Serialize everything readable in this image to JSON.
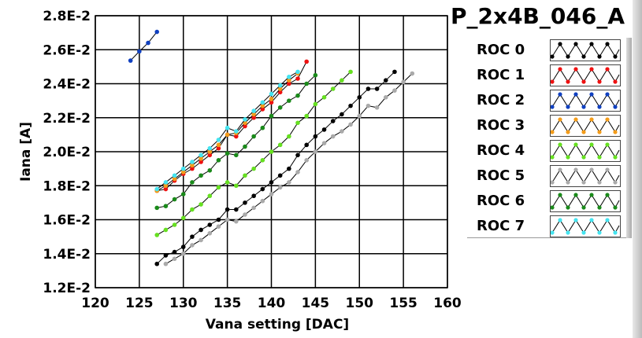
{
  "title": "P_2x4B_046_A",
  "chart_data": {
    "type": "line",
    "title": "P_2x4B_046_A",
    "xlabel": "Vana setting [DAC]",
    "ylabel": "Iana [A]",
    "xlim": [
      120,
      160
    ],
    "ylim": [
      0.012,
      0.028
    ],
    "xticks": [
      "120",
      "125",
      "130",
      "135",
      "140",
      "145",
      "150",
      "155",
      "160"
    ],
    "yticks": [
      "1.2E-2",
      "1.4E-2",
      "1.6E-2",
      "1.8E-2",
      "2.0E-2",
      "2.2E-2",
      "2.4E-2",
      "2.6E-2",
      "2.8E-2"
    ],
    "grid": true,
    "legend_position": "right",
    "series": [
      {
        "name": "ROC 0",
        "color": "#000000",
        "x_start": 127,
        "values": [
          0.0134,
          0.0139,
          0.0141,
          0.0144,
          0.015,
          0.0154,
          0.0157,
          0.016,
          0.0166,
          0.0166,
          0.017,
          0.0174,
          0.0178,
          0.0182,
          0.0186,
          0.019,
          0.0198,
          0.0204,
          0.0209,
          0.0213,
          0.0218,
          0.0222,
          0.0227,
          0.0232,
          0.0237,
          0.0237,
          0.0242,
          0.0247
        ]
      },
      {
        "name": "ROC 1",
        "color": "#ee1111",
        "x_start": 127,
        "values": [
          0.0177,
          0.0178,
          0.0183,
          0.0187,
          0.019,
          0.0194,
          0.0198,
          0.0202,
          0.021,
          0.0209,
          0.0215,
          0.022,
          0.0225,
          0.0229,
          0.0235,
          0.024,
          0.0243,
          0.0253
        ]
      },
      {
        "name": "ROC 2",
        "color": "#1040c0",
        "x_start": 124,
        "values": [
          0.02536,
          0.0259,
          0.0264,
          0.02705
        ]
      },
      {
        "name": "ROC 3",
        "color": "#f39c1a",
        "x_start": 127,
        "values": [
          0.0177,
          0.018,
          0.0184,
          0.0188,
          0.0192,
          0.0196,
          0.02,
          0.0204,
          0.021,
          0.0211,
          0.0217,
          0.0222,
          0.0227,
          0.0231,
          0.0237,
          0.0242,
          0.0246
        ]
      },
      {
        "name": "ROC 4",
        "color": "#66e020",
        "x_start": 127,
        "values": [
          0.0151,
          0.0154,
          0.0157,
          0.0161,
          0.0166,
          0.0169,
          0.0174,
          0.0179,
          0.0182,
          0.018,
          0.0186,
          0.019,
          0.0195,
          0.02,
          0.0204,
          0.0209,
          0.0217,
          0.0221,
          0.0228,
          0.0232,
          0.0237,
          0.0242,
          0.0247
        ]
      },
      {
        "name": "ROC 5",
        "color": "#aaaaaa",
        "x_start": 128,
        "values": [
          0.0134,
          0.0137,
          0.014,
          0.0145,
          0.0148,
          0.0152,
          0.0156,
          0.016,
          0.0159,
          0.0163,
          0.0167,
          0.0171,
          0.0175,
          0.0179,
          0.0182,
          0.0188,
          0.0195,
          0.02,
          0.0205,
          0.0209,
          0.0212,
          0.0216,
          0.0221,
          0.0227,
          0.0226,
          0.0232,
          0.0236,
          0.0241,
          0.0246
        ]
      },
      {
        "name": "ROC 6",
        "color": "#1a8a1a",
        "x_start": 127,
        "values": [
          0.0167,
          0.0168,
          0.0172,
          0.0175,
          0.0182,
          0.0186,
          0.0189,
          0.0195,
          0.0199,
          0.0198,
          0.0203,
          0.0209,
          0.0214,
          0.0221,
          0.0226,
          0.023,
          0.0233,
          0.024,
          0.0245
        ]
      },
      {
        "name": "ROC 7",
        "color": "#44e4f0",
        "x_start": 127,
        "values": [
          0.0178,
          0.0182,
          0.0186,
          0.019,
          0.0194,
          0.0198,
          0.0202,
          0.0207,
          0.0214,
          0.0212,
          0.0219,
          0.0224,
          0.0229,
          0.0234,
          0.0239,
          0.0244,
          0.0247
        ]
      }
    ]
  }
}
